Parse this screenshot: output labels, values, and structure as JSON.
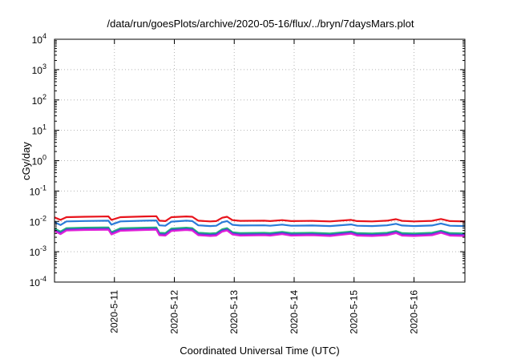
{
  "chart_data": {
    "type": "line",
    "title": "/data/run/goesPlots/archive/2020-05-16/flux/../bryn/7daysMars.plot",
    "xlabel": "Coordinated Universal Time (UTC)",
    "ylabel": "cGy/day",
    "yscale": "log",
    "ylim": [
      0.0001,
      10000
    ],
    "xlim": [
      0,
      6.85
    ],
    "grid": true,
    "legend": "none",
    "yticks": [
      {
        "value": 0.0001,
        "base": "10",
        "exp": "-4"
      },
      {
        "value": 0.001,
        "base": "10",
        "exp": "-3"
      },
      {
        "value": 0.01,
        "base": "10",
        "exp": "-2"
      },
      {
        "value": 0.1,
        "base": "10",
        "exp": "-1"
      },
      {
        "value": 1,
        "base": "10",
        "exp": "0"
      },
      {
        "value": 10,
        "base": "10",
        "exp": "1"
      },
      {
        "value": 100,
        "base": "10",
        "exp": "2"
      },
      {
        "value": 1000,
        "base": "10",
        "exp": "3"
      },
      {
        "value": 10000,
        "base": "10",
        "exp": "4"
      }
    ],
    "xticks": [
      {
        "value": 1,
        "label": "2020-5-11"
      },
      {
        "value": 2,
        "label": "2020-5-12"
      },
      {
        "value": 3,
        "label": "2020-5-13"
      },
      {
        "value": 4,
        "label": "2020-5-14"
      },
      {
        "value": 5,
        "label": "2020-5-15"
      },
      {
        "value": 6,
        "label": "2020-5-16"
      }
    ],
    "series": [
      {
        "color": "#e8141c",
        "points": [
          [
            0,
            0.0135
          ],
          [
            0.1,
            0.0112
          ],
          [
            0.2,
            0.0138
          ],
          [
            0.5,
            0.0142
          ],
          [
            0.9,
            0.0145
          ],
          [
            0.95,
            0.0112
          ],
          [
            1.1,
            0.0138
          ],
          [
            1.5,
            0.0145
          ],
          [
            1.7,
            0.0148
          ],
          [
            1.75,
            0.0105
          ],
          [
            1.85,
            0.0102
          ],
          [
            1.95,
            0.0138
          ],
          [
            2.2,
            0.0145
          ],
          [
            2.3,
            0.0142
          ],
          [
            2.4,
            0.0105
          ],
          [
            2.6,
            0.01
          ],
          [
            2.7,
            0.0102
          ],
          [
            2.8,
            0.0132
          ],
          [
            2.88,
            0.0142
          ],
          [
            2.97,
            0.011
          ],
          [
            3.1,
            0.0104
          ],
          [
            3.5,
            0.0105
          ],
          [
            3.6,
            0.0102
          ],
          [
            3.8,
            0.011
          ],
          [
            3.95,
            0.0102
          ],
          [
            4.3,
            0.0104
          ],
          [
            4.6,
            0.01
          ],
          [
            4.95,
            0.0112
          ],
          [
            5.05,
            0.0102
          ],
          [
            5.3,
            0.01
          ],
          [
            5.55,
            0.0105
          ],
          [
            5.7,
            0.0118
          ],
          [
            5.8,
            0.0104
          ],
          [
            6.0,
            0.01
          ],
          [
            6.3,
            0.0104
          ],
          [
            6.45,
            0.012
          ],
          [
            6.6,
            0.0102
          ],
          [
            6.85,
            0.01
          ]
        ]
      },
      {
        "color": "#2a7bd8",
        "points": [
          [
            0,
            0.0095
          ],
          [
            0.1,
            0.0076
          ],
          [
            0.2,
            0.01
          ],
          [
            0.5,
            0.0103
          ],
          [
            0.9,
            0.0105
          ],
          [
            0.95,
            0.0078
          ],
          [
            1.1,
            0.01
          ],
          [
            1.5,
            0.0105
          ],
          [
            1.7,
            0.0107
          ],
          [
            1.75,
            0.0074
          ],
          [
            1.85,
            0.0072
          ],
          [
            1.95,
            0.0098
          ],
          [
            2.2,
            0.0105
          ],
          [
            2.3,
            0.0102
          ],
          [
            2.4,
            0.0074
          ],
          [
            2.6,
            0.007
          ],
          [
            2.7,
            0.0072
          ],
          [
            2.8,
            0.0094
          ],
          [
            2.88,
            0.0102
          ],
          [
            2.97,
            0.0077
          ],
          [
            3.1,
            0.0073
          ],
          [
            3.5,
            0.0074
          ],
          [
            3.6,
            0.0072
          ],
          [
            3.8,
            0.0078
          ],
          [
            3.95,
            0.0072
          ],
          [
            4.3,
            0.0073
          ],
          [
            4.6,
            0.007
          ],
          [
            4.95,
            0.0079
          ],
          [
            5.05,
            0.0072
          ],
          [
            5.3,
            0.007
          ],
          [
            5.55,
            0.0074
          ],
          [
            5.7,
            0.0083
          ],
          [
            5.8,
            0.0073
          ],
          [
            6.0,
            0.007
          ],
          [
            6.3,
            0.0073
          ],
          [
            6.45,
            0.0085
          ],
          [
            6.6,
            0.0072
          ],
          [
            6.85,
            0.007
          ]
        ]
      },
      {
        "color": "#20b478",
        "points": [
          [
            0,
            0.0058
          ],
          [
            0.1,
            0.0046
          ],
          [
            0.2,
            0.006
          ],
          [
            0.5,
            0.0062
          ],
          [
            0.9,
            0.0063
          ],
          [
            0.95,
            0.0044
          ],
          [
            1.1,
            0.0059
          ],
          [
            1.5,
            0.0062
          ],
          [
            1.7,
            0.0063
          ],
          [
            1.75,
            0.0042
          ],
          [
            1.85,
            0.0041
          ],
          [
            1.95,
            0.0058
          ],
          [
            2.2,
            0.0062
          ],
          [
            2.3,
            0.006
          ],
          [
            2.4,
            0.0042
          ],
          [
            2.6,
            0.004
          ],
          [
            2.7,
            0.0041
          ],
          [
            2.8,
            0.0055
          ],
          [
            2.88,
            0.006
          ],
          [
            2.97,
            0.0044
          ],
          [
            3.1,
            0.0041
          ],
          [
            3.5,
            0.0042
          ],
          [
            3.6,
            0.0041
          ],
          [
            3.8,
            0.0045
          ],
          [
            3.95,
            0.0041
          ],
          [
            4.3,
            0.0042
          ],
          [
            4.6,
            0.004
          ],
          [
            4.95,
            0.0046
          ],
          [
            5.05,
            0.0041
          ],
          [
            5.3,
            0.004
          ],
          [
            5.55,
            0.0042
          ],
          [
            5.7,
            0.0048
          ],
          [
            5.8,
            0.0041
          ],
          [
            6.0,
            0.004
          ],
          [
            6.3,
            0.0042
          ],
          [
            6.45,
            0.0049
          ],
          [
            6.6,
            0.0041
          ],
          [
            6.85,
            0.004
          ]
        ]
      },
      {
        "color": "#4f3dd8",
        "points": [
          [
            0,
            0.0052
          ],
          [
            0.1,
            0.0041
          ],
          [
            0.2,
            0.0054
          ],
          [
            0.5,
            0.0056
          ],
          [
            0.9,
            0.0057
          ],
          [
            0.95,
            0.004
          ],
          [
            1.1,
            0.0053
          ],
          [
            1.5,
            0.0056
          ],
          [
            1.7,
            0.0057
          ],
          [
            1.75,
            0.0038
          ],
          [
            1.85,
            0.0037
          ],
          [
            1.95,
            0.0052
          ],
          [
            2.2,
            0.0056
          ],
          [
            2.3,
            0.0054
          ],
          [
            2.4,
            0.0038
          ],
          [
            2.6,
            0.0036
          ],
          [
            2.7,
            0.0037
          ],
          [
            2.8,
            0.005
          ],
          [
            2.88,
            0.0054
          ],
          [
            2.97,
            0.004
          ],
          [
            3.1,
            0.0037
          ],
          [
            3.5,
            0.0038
          ],
          [
            3.6,
            0.0037
          ],
          [
            3.8,
            0.0041
          ],
          [
            3.95,
            0.0037
          ],
          [
            4.3,
            0.0038
          ],
          [
            4.6,
            0.0036
          ],
          [
            4.95,
            0.0042
          ],
          [
            5.05,
            0.0037
          ],
          [
            5.3,
            0.0036
          ],
          [
            5.55,
            0.0038
          ],
          [
            5.7,
            0.0044
          ],
          [
            5.8,
            0.0037
          ],
          [
            6.0,
            0.0036
          ],
          [
            6.3,
            0.0038
          ],
          [
            6.45,
            0.0045
          ],
          [
            6.6,
            0.0037
          ],
          [
            6.85,
            0.0036
          ]
        ]
      },
      {
        "color": "#e020d8",
        "points": [
          [
            0,
            0.0048
          ],
          [
            0.1,
            0.0038
          ],
          [
            0.2,
            0.005
          ],
          [
            0.5,
            0.0052
          ],
          [
            0.9,
            0.0053
          ],
          [
            0.95,
            0.0037
          ],
          [
            1.1,
            0.0049
          ],
          [
            1.5,
            0.0052
          ],
          [
            1.7,
            0.0053
          ],
          [
            1.75,
            0.0035
          ],
          [
            1.85,
            0.0034
          ],
          [
            1.95,
            0.0048
          ],
          [
            2.2,
            0.0052
          ],
          [
            2.3,
            0.005
          ],
          [
            2.4,
            0.0035
          ],
          [
            2.6,
            0.0033
          ],
          [
            2.7,
            0.0034
          ],
          [
            2.8,
            0.0046
          ],
          [
            2.88,
            0.005
          ],
          [
            2.97,
            0.0037
          ],
          [
            3.1,
            0.0034
          ],
          [
            3.5,
            0.0035
          ],
          [
            3.6,
            0.0034
          ],
          [
            3.8,
            0.0038
          ],
          [
            3.95,
            0.0034
          ],
          [
            4.3,
            0.0035
          ],
          [
            4.6,
            0.0033
          ],
          [
            4.95,
            0.0039
          ],
          [
            5.05,
            0.0034
          ],
          [
            5.3,
            0.0033
          ],
          [
            5.55,
            0.0035
          ],
          [
            5.7,
            0.0041
          ],
          [
            5.8,
            0.0034
          ],
          [
            6.0,
            0.0033
          ],
          [
            6.3,
            0.0035
          ],
          [
            6.45,
            0.0042
          ],
          [
            6.6,
            0.0034
          ],
          [
            6.85,
            0.0033
          ]
        ]
      }
    ]
  }
}
